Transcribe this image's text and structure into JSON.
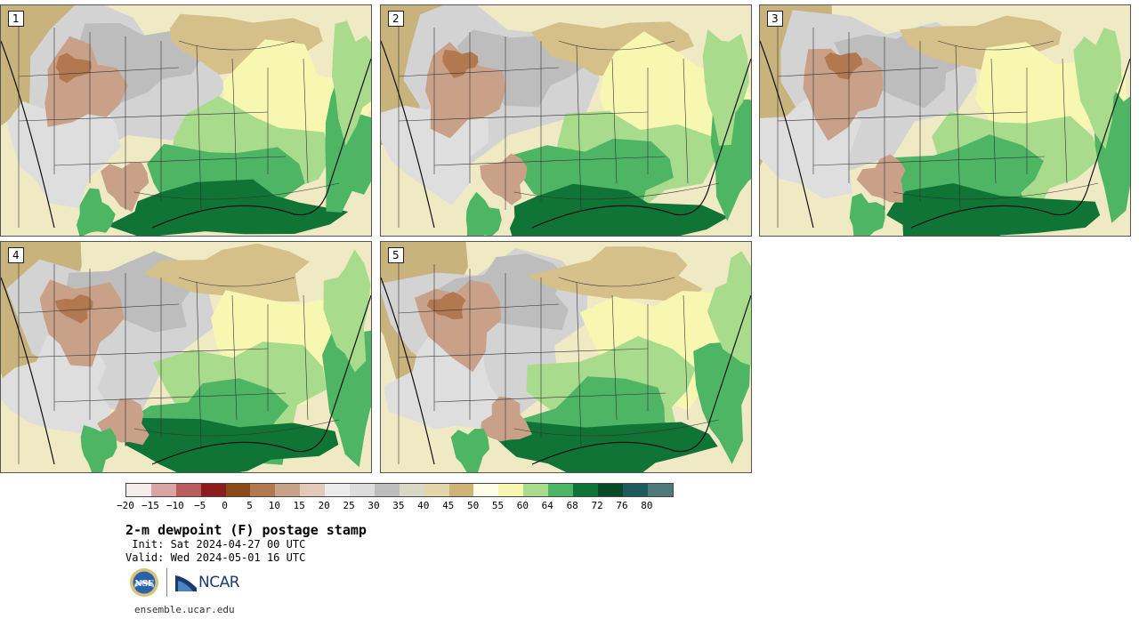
{
  "panels": [
    {
      "label": "1",
      "variant": 0
    },
    {
      "label": "2",
      "variant": 1
    },
    {
      "label": "3",
      "variant": 2
    },
    {
      "label": "4",
      "variant": 3
    },
    {
      "label": "5",
      "variant": 4
    }
  ],
  "colorbar": {
    "colors": [
      "#f5ecec",
      "#d9a4a4",
      "#b85c5c",
      "#8c1d1d",
      "#8a4a1a",
      "#b27850",
      "#c9a088",
      "#e3c9b8",
      "#ececec",
      "#dcdcdc",
      "#bdbdbd",
      "#d9d6c6",
      "#e3d5a8",
      "#cfb47a",
      "#fffde8",
      "#f7f7b2",
      "#a8dc8c",
      "#4eb565",
      "#0f7436",
      "#074a28",
      "#1f5a5a",
      "#4f7a7a"
    ],
    "tick_labels": [
      "−20",
      "−15",
      "−10",
      "−5",
      "0",
      "5",
      "10",
      "15",
      "20",
      "25",
      "30",
      "35",
      "40",
      "45",
      "50",
      "55",
      "60",
      "64",
      "68",
      "72",
      "76",
      "80"
    ]
  },
  "title": "2-m dewpoint (F) postage stamp",
  "init": " Init: Sat 2024-04-27 00 UTC",
  "valid": "Valid: Wed 2024-05-01 16 UTC",
  "logos": {
    "nsf": "NSF",
    "ncar": "NCAR"
  },
  "website": "ensemble.ucar.edu"
}
